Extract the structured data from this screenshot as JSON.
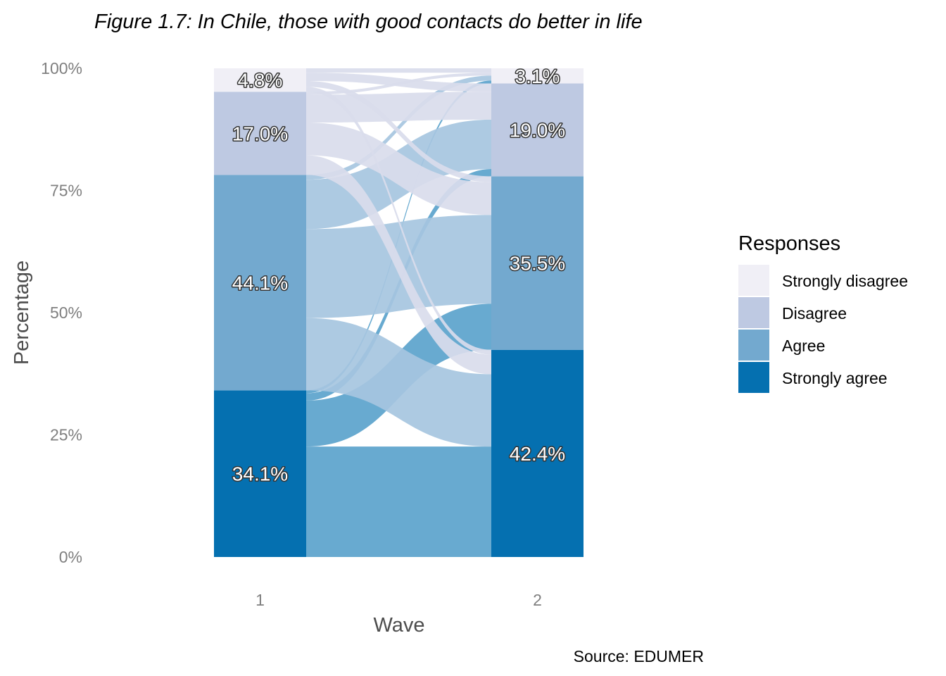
{
  "chart_data": {
    "type": "alluvial",
    "title": "Figure 1.7: In Chile, those with good contacts do better in life",
    "xlabel": "Wave",
    "ylabel": "Percentage",
    "caption": "Source: EDUMER",
    "categories": [
      "1",
      "2"
    ],
    "yticks": [
      "0%",
      "25%",
      "50%",
      "75%",
      "100%"
    ],
    "ylim": [
      0,
      100
    ],
    "legend": {
      "title": "Responses",
      "position": "right",
      "items": [
        "Strongly disagree",
        "Disagree",
        "Agree",
        "Strongly agree"
      ]
    },
    "colors": {
      "Strongly disagree": "#f0eff6",
      "Disagree": "#bec9e2",
      "Agree": "#73a9cf",
      "Strongly agree": "#0570b0",
      "flow_strongly_disagree": "#d9dcec",
      "flow_disagree": "#d9dcec",
      "flow_agree": "#a6c6df",
      "flow_strongly_agree": "#5ba3cc"
    },
    "series": [
      {
        "name": "Strongly agree",
        "values": [
          34.1,
          42.4
        ],
        "labels": [
          "34.1%",
          "42.4%"
        ]
      },
      {
        "name": "Agree",
        "values": [
          44.1,
          35.5
        ],
        "labels": [
          "44.1%",
          "35.5%"
        ]
      },
      {
        "name": "Disagree",
        "values": [
          17.0,
          19.0
        ],
        "labels": [
          "17.0%",
          "19.0%"
        ]
      },
      {
        "name": "Strongly disagree",
        "values": [
          4.8,
          3.1
        ],
        "labels": [
          "4.8%",
          "3.1%"
        ]
      }
    ],
    "flows": [
      {
        "from": "Strongly agree",
        "to": "Strongly agree",
        "value": 22.6
      },
      {
        "from": "Strongly agree",
        "to": "Agree",
        "value": 9.4
      },
      {
        "from": "Strongly agree",
        "to": "Disagree",
        "value": 1.5
      },
      {
        "from": "Strongly agree",
        "to": "Strongly disagree",
        "value": 0.6
      },
      {
        "from": "Agree",
        "to": "Strongly agree",
        "value": 14.8
      },
      {
        "from": "Agree",
        "to": "Agree",
        "value": 18.2
      },
      {
        "from": "Agree",
        "to": "Disagree",
        "value": 10.1
      },
      {
        "from": "Agree",
        "to": "Strongly disagree",
        "value": 1.0
      },
      {
        "from": "Disagree",
        "to": "Strongly agree",
        "value": 4.0
      },
      {
        "from": "Disagree",
        "to": "Agree",
        "value": 6.7
      },
      {
        "from": "Disagree",
        "to": "Disagree",
        "value": 5.7
      },
      {
        "from": "Disagree",
        "to": "Strongly disagree",
        "value": 0.6
      },
      {
        "from": "Strongly disagree",
        "to": "Strongly agree",
        "value": 1.0
      },
      {
        "from": "Strongly disagree",
        "to": "Agree",
        "value": 1.2
      },
      {
        "from": "Strongly disagree",
        "to": "Disagree",
        "value": 1.7
      },
      {
        "from": "Strongly disagree",
        "to": "Strongly disagree",
        "value": 0.9
      }
    ]
  }
}
